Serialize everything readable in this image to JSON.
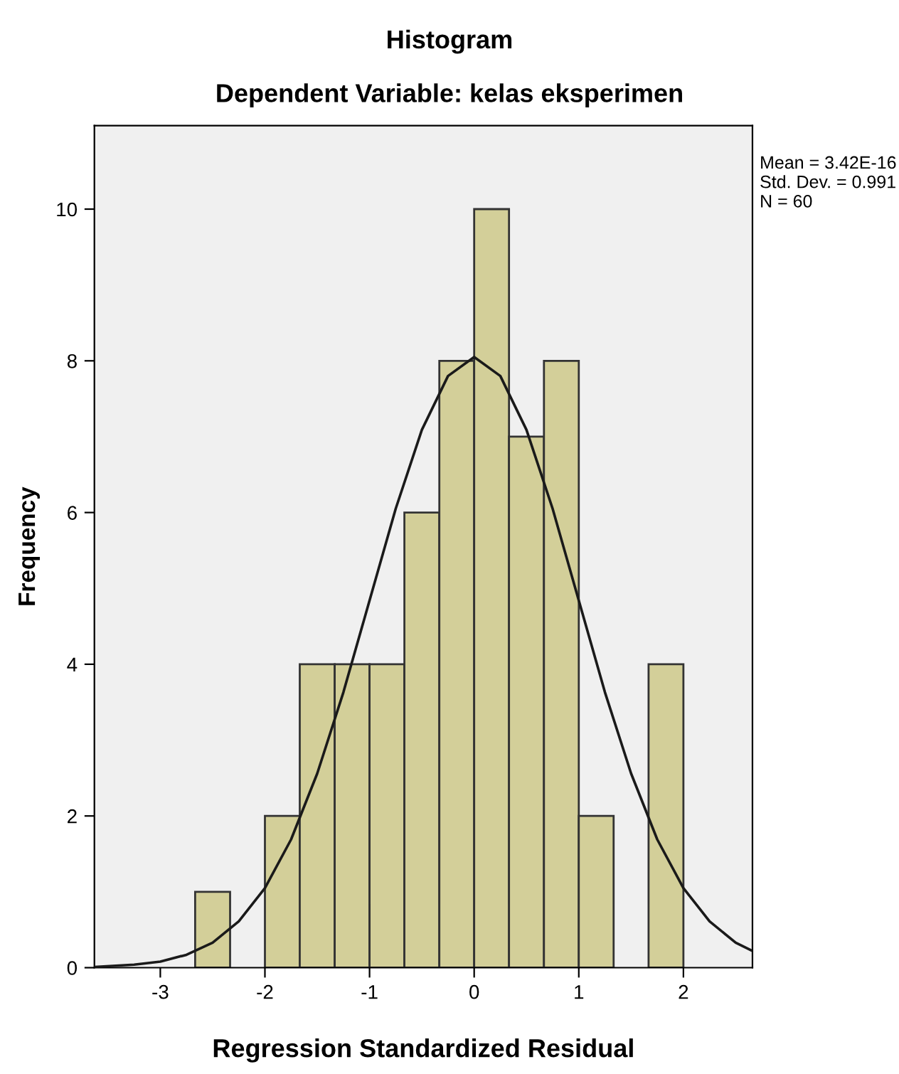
{
  "chart_data": {
    "type": "histogram",
    "title": "Histogram",
    "subtitle": "Dependent Variable: kelas eksperimen",
    "xlabel": "Regression Standardized Residual",
    "ylabel": "Frequency",
    "bins": [
      -2.667,
      -2.333,
      -2,
      -1.667,
      -1.333,
      -1,
      -0.667,
      -0.333,
      0,
      0.333,
      0.667,
      1,
      1.333,
      1.667,
      2
    ],
    "values": [
      1,
      0,
      2,
      4,
      4,
      4,
      6,
      8,
      10,
      7,
      8,
      2,
      0,
      4
    ],
    "color": "#d3cf99",
    "series": [
      {
        "type": "line",
        "color": "#1a1a1a",
        "x": [
          -3.63,
          -3.25,
          -3.0,
          -2.75,
          -2.5,
          -2.25,
          -2.0,
          -1.75,
          -1.5,
          -1.25,
          -1.0,
          -0.75,
          -0.5,
          -0.25,
          0,
          0.25,
          0.5,
          0.75,
          1.0,
          1.25,
          1.5,
          1.75,
          2.0,
          2.25,
          2.5,
          2.66
        ],
        "values": [
          0.01,
          0.04,
          0.08,
          0.17,
          0.33,
          0.61,
          1.05,
          1.69,
          2.56,
          3.63,
          4.84,
          6.05,
          7.09,
          7.8,
          8.05,
          7.8,
          7.09,
          6.05,
          4.84,
          3.63,
          2.56,
          1.69,
          1.05,
          0.61,
          0.33,
          0.22
        ]
      }
    ],
    "xlim": [
      -3.63,
      2.66
    ],
    "ylim": [
      0,
      11.1
    ],
    "xticks": [
      -3,
      -2,
      -1,
      0,
      1,
      2
    ],
    "yticks": [
      0,
      2,
      4,
      6,
      8,
      10
    ],
    "grid": false,
    "annotations": [
      "Mean = 3.42E-16",
      "Std. Dev. = 0.991",
      "N = 60"
    ]
  }
}
